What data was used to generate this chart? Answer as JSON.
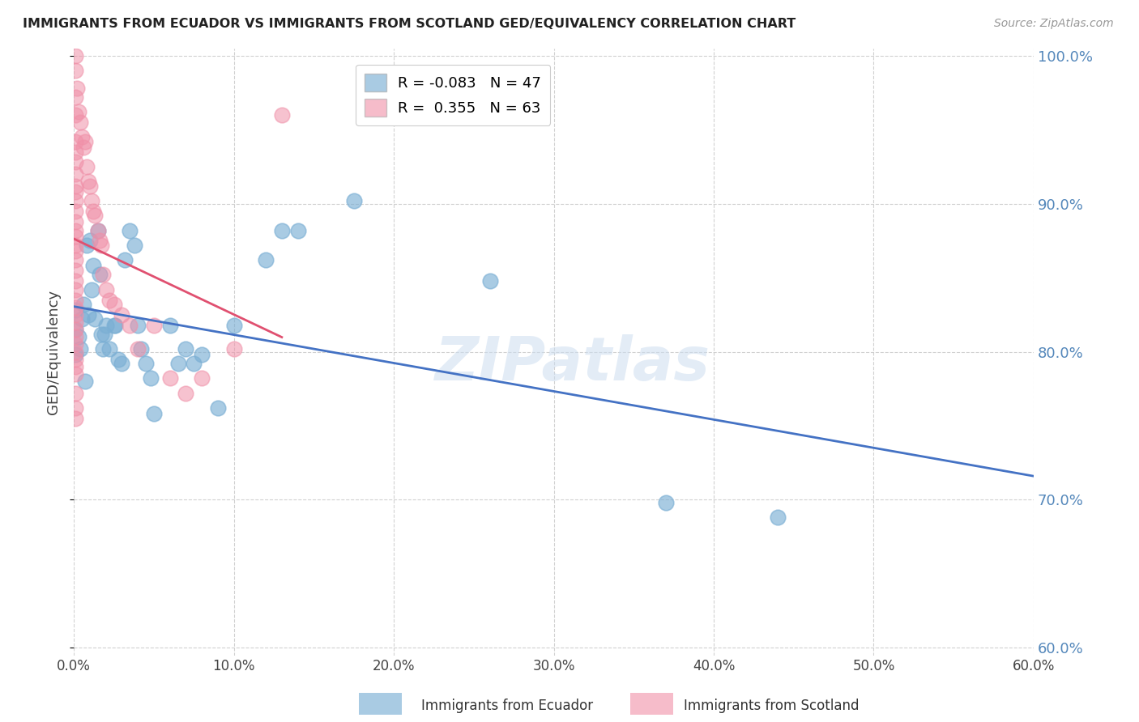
{
  "title": "IMMIGRANTS FROM ECUADOR VS IMMIGRANTS FROM SCOTLAND GED/EQUIVALENCY CORRELATION CHART",
  "source": "Source: ZipAtlas.com",
  "ylabel": "GED/Equivalency",
  "xmin": 0.0,
  "xmax": 0.6,
  "ymin": 0.595,
  "ymax": 1.005,
  "ecuador_color": "#7bafd4",
  "scotland_color": "#f090a8",
  "ecuador_line_color": "#4472c4",
  "scotland_line_color": "#e05070",
  "ecuador_R": -0.083,
  "ecuador_N": 47,
  "scotland_R": 0.355,
  "scotland_N": 63,
  "watermark": "ZIPatlas",
  "ecuador_points": [
    [
      0.001,
      0.815
    ],
    [
      0.001,
      0.828
    ],
    [
      0.001,
      0.798
    ],
    [
      0.003,
      0.81
    ],
    [
      0.004,
      0.802
    ],
    [
      0.005,
      0.822
    ],
    [
      0.006,
      0.832
    ],
    [
      0.007,
      0.78
    ],
    [
      0.008,
      0.872
    ],
    [
      0.009,
      0.825
    ],
    [
      0.01,
      0.875
    ],
    [
      0.011,
      0.842
    ],
    [
      0.012,
      0.858
    ],
    [
      0.013,
      0.822
    ],
    [
      0.015,
      0.882
    ],
    [
      0.016,
      0.852
    ],
    [
      0.017,
      0.812
    ],
    [
      0.018,
      0.802
    ],
    [
      0.019,
      0.812
    ],
    [
      0.02,
      0.818
    ],
    [
      0.022,
      0.802
    ],
    [
      0.025,
      0.818
    ],
    [
      0.026,
      0.818
    ],
    [
      0.028,
      0.795
    ],
    [
      0.03,
      0.792
    ],
    [
      0.032,
      0.862
    ],
    [
      0.035,
      0.882
    ],
    [
      0.038,
      0.872
    ],
    [
      0.04,
      0.818
    ],
    [
      0.042,
      0.802
    ],
    [
      0.045,
      0.792
    ],
    [
      0.048,
      0.782
    ],
    [
      0.05,
      0.758
    ],
    [
      0.06,
      0.818
    ],
    [
      0.065,
      0.792
    ],
    [
      0.07,
      0.802
    ],
    [
      0.075,
      0.792
    ],
    [
      0.08,
      0.798
    ],
    [
      0.09,
      0.762
    ],
    [
      0.1,
      0.818
    ],
    [
      0.12,
      0.862
    ],
    [
      0.13,
      0.882
    ],
    [
      0.14,
      0.882
    ],
    [
      0.175,
      0.902
    ],
    [
      0.26,
      0.848
    ],
    [
      0.37,
      0.698
    ],
    [
      0.44,
      0.688
    ]
  ],
  "scotland_points": [
    [
      0.001,
      1.0
    ],
    [
      0.001,
      0.99
    ],
    [
      0.001,
      0.972
    ],
    [
      0.001,
      0.96
    ],
    [
      0.001,
      0.942
    ],
    [
      0.001,
      0.935
    ],
    [
      0.001,
      0.928
    ],
    [
      0.001,
      0.92
    ],
    [
      0.001,
      0.912
    ],
    [
      0.001,
      0.908
    ],
    [
      0.001,
      0.902
    ],
    [
      0.001,
      0.895
    ],
    [
      0.001,
      0.888
    ],
    [
      0.001,
      0.882
    ],
    [
      0.001,
      0.878
    ],
    [
      0.001,
      0.872
    ],
    [
      0.001,
      0.868
    ],
    [
      0.001,
      0.862
    ],
    [
      0.001,
      0.855
    ],
    [
      0.001,
      0.848
    ],
    [
      0.001,
      0.842
    ],
    [
      0.001,
      0.835
    ],
    [
      0.001,
      0.83
    ],
    [
      0.001,
      0.825
    ],
    [
      0.001,
      0.82
    ],
    [
      0.001,
      0.815
    ],
    [
      0.001,
      0.81
    ],
    [
      0.001,
      0.805
    ],
    [
      0.001,
      0.8
    ],
    [
      0.001,
      0.795
    ],
    [
      0.001,
      0.79
    ],
    [
      0.001,
      0.785
    ],
    [
      0.001,
      0.772
    ],
    [
      0.001,
      0.762
    ],
    [
      0.001,
      0.755
    ],
    [
      0.002,
      0.978
    ],
    [
      0.003,
      0.962
    ],
    [
      0.004,
      0.955
    ],
    [
      0.005,
      0.945
    ],
    [
      0.006,
      0.938
    ],
    [
      0.007,
      0.942
    ],
    [
      0.008,
      0.925
    ],
    [
      0.009,
      0.915
    ],
    [
      0.01,
      0.912
    ],
    [
      0.011,
      0.902
    ],
    [
      0.012,
      0.895
    ],
    [
      0.013,
      0.892
    ],
    [
      0.015,
      0.882
    ],
    [
      0.016,
      0.875
    ],
    [
      0.017,
      0.872
    ],
    [
      0.018,
      0.852
    ],
    [
      0.02,
      0.842
    ],
    [
      0.022,
      0.835
    ],
    [
      0.025,
      0.832
    ],
    [
      0.03,
      0.825
    ],
    [
      0.035,
      0.818
    ],
    [
      0.04,
      0.802
    ],
    [
      0.05,
      0.818
    ],
    [
      0.06,
      0.782
    ],
    [
      0.07,
      0.772
    ],
    [
      0.08,
      0.782
    ],
    [
      0.1,
      0.802
    ],
    [
      0.13,
      0.96
    ]
  ],
  "grid_color": "#cccccc",
  "bg_color": "#ffffff",
  "title_color": "#222222",
  "tick_color": "#5588bb"
}
